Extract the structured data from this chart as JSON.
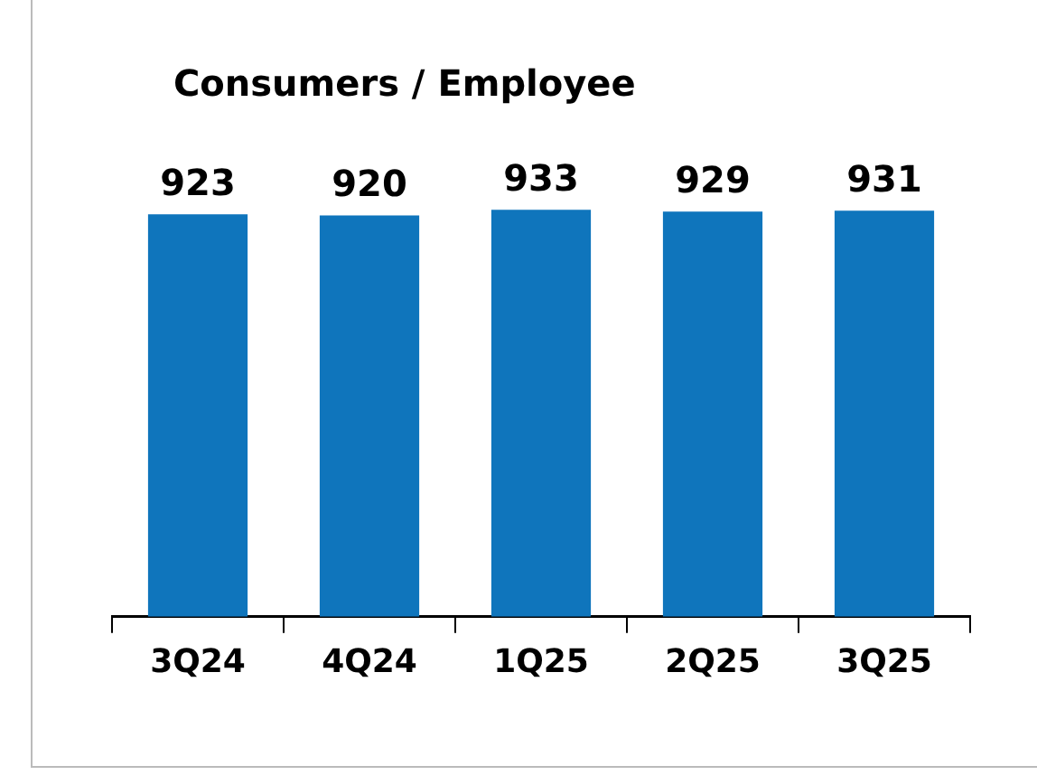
{
  "chart_data": {
    "type": "bar",
    "title": "Consumers / Employee",
    "categories": [
      "3Q24",
      "4Q24",
      "1Q25",
      "2Q25",
      "3Q25"
    ],
    "values": [
      923,
      920,
      933,
      929,
      931
    ],
    "color": "#0f75bc",
    "data_labels": true,
    "tick_labels": "x",
    "grid": false,
    "legend": false
  }
}
